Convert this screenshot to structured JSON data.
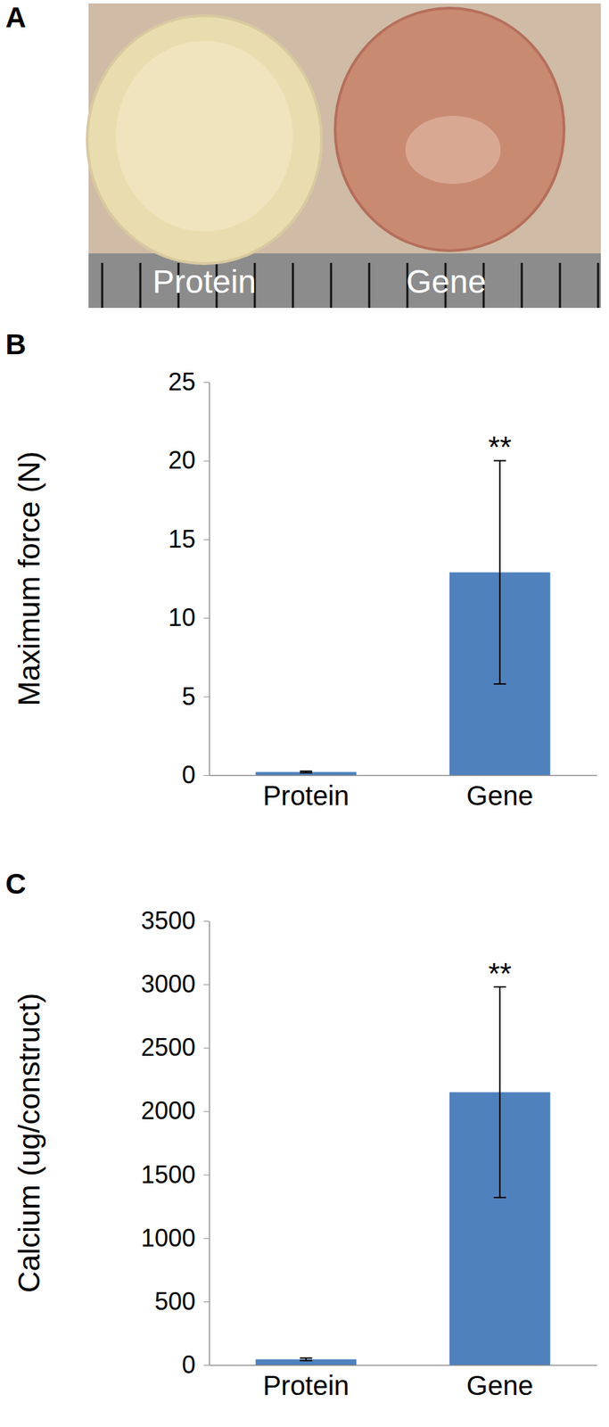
{
  "photo": {
    "panel_label": "A",
    "labels": [
      "Protein",
      "Gene"
    ]
  },
  "chart_data": [
    {
      "type": "bar",
      "panel_label": "B",
      "y_label": "Maximum force (N)",
      "categories": [
        "Protein",
        "Gene"
      ],
      "values": [
        0.2,
        12.9
      ],
      "errors": [
        0.05,
        7.1
      ],
      "color": "#4f81bd",
      "ylim": [
        0,
        25
      ],
      "yticks": [
        0,
        5,
        10,
        15,
        20,
        25
      ],
      "grid": false,
      "annotations": [
        {
          "category": "Gene",
          "text": "**"
        }
      ]
    },
    {
      "type": "bar",
      "panel_label": "C",
      "y_label": "Calcium (ug/construct)",
      "categories": [
        "Protein",
        "Gene"
      ],
      "values": [
        45,
        2150
      ],
      "errors": [
        10,
        830
      ],
      "color": "#4f81bd",
      "ylim": [
        0,
        3500
      ],
      "yticks": [
        0,
        500,
        1000,
        1500,
        2000,
        2500,
        3000,
        3500
      ],
      "grid": false,
      "annotations": [
        {
          "category": "Gene",
          "text": "**"
        }
      ]
    }
  ]
}
